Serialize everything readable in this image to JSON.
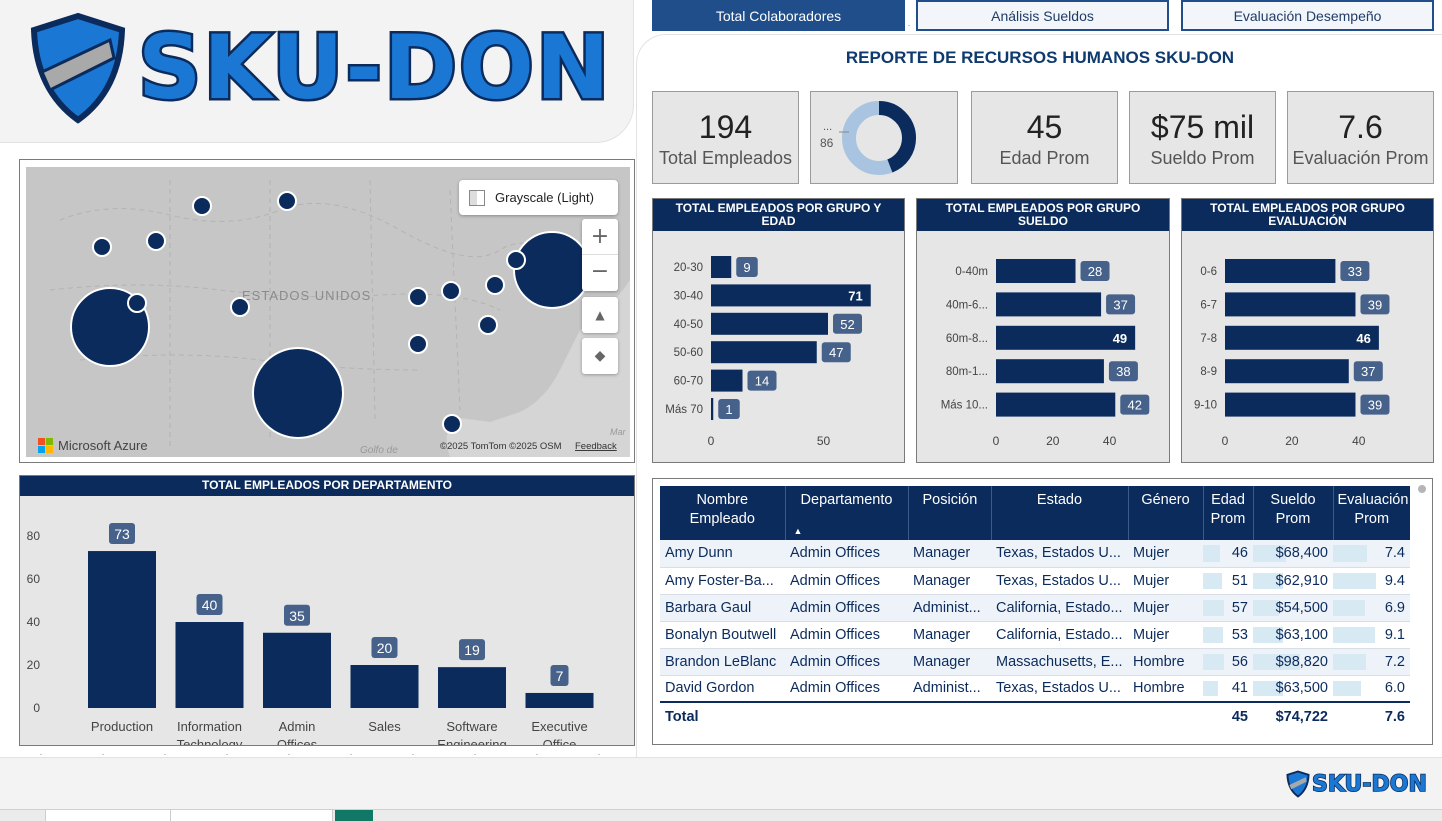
{
  "brand": {
    "logo_text": "SKU-DON",
    "small_logo_text": "SKU-DON"
  },
  "nav": {
    "tabs": [
      "Total Colaboradores",
      "Análisis Sueldos",
      "Evaluación Desempeño"
    ],
    "active": 0
  },
  "report_title": "REPORTE DE RECURSOS HUMANOS SKU-DON",
  "kpis": {
    "total_employees": {
      "value": "194",
      "label": "Total Empleados"
    },
    "donut": {
      "label_top": "...",
      "label_value": "86",
      "fraction": 0.44
    },
    "age": {
      "value": "45",
      "label": "Edad Prom"
    },
    "salary": {
      "value": "$75 mil",
      "label": "Sueldo Prom"
    },
    "evaluation": {
      "value": "7.6",
      "label": "Evaluación Prom"
    }
  },
  "map": {
    "style_button": "Grayscale (Light)",
    "country_label": "ESTADOS UNIDOS",
    "gulf_label": "Golfo de",
    "copyright": "©2025 TomTom  ©2025 OSM",
    "feedback": "Feedback",
    "azure": "Microsoft Azure",
    "mar_label": "Mar"
  },
  "chart_data": [
    {
      "type": "bar",
      "orientation": "horizontal",
      "title": "TOTAL EMPLEADOS POR GRUPO Y EDAD",
      "categories": [
        "20-30",
        "30-40",
        "40-50",
        "50-60",
        "60-70",
        "Más 70"
      ],
      "values": [
        9,
        71,
        52,
        47,
        14,
        1
      ],
      "xticks": [
        0,
        50
      ],
      "xlim": [
        0,
        80
      ]
    },
    {
      "type": "bar",
      "orientation": "horizontal",
      "title": "TOTAL EMPLEADOS POR GRUPO SUELDO",
      "categories": [
        "0-40m",
        "40m-6...",
        "60m-8...",
        "80m-1...",
        "Más 10..."
      ],
      "values": [
        28,
        37,
        49,
        38,
        42
      ],
      "xticks": [
        0,
        20,
        40
      ],
      "xlim": [
        0,
        50
      ]
    },
    {
      "type": "bar",
      "orientation": "horizontal",
      "title": "TOTAL EMPLEADOS POR GRUPO EVALUACIÓN",
      "categories": [
        "0-6",
        "6-7",
        "7-8",
        "8-9",
        "9-10"
      ],
      "values": [
        33,
        39,
        46,
        37,
        39
      ],
      "xticks": [
        0,
        20,
        40
      ],
      "xlim": [
        0,
        55
      ]
    },
    {
      "type": "bar",
      "orientation": "vertical",
      "title": "TOTAL EMPLEADOS POR DEPARTAMENTO",
      "categories": [
        "Production",
        "Information Technology",
        "Admin Offices",
        "Sales",
        "Software Engineering",
        "Executive Office"
      ],
      "values": [
        73,
        40,
        35,
        20,
        19,
        7
      ],
      "yticks": [
        0,
        20,
        40,
        60,
        80
      ],
      "ylim": [
        0,
        80
      ]
    }
  ],
  "table": {
    "headers": [
      "Nombre Empleado",
      "Departamento",
      "Posición",
      "Estado",
      "Género",
      "Edad Prom",
      "Sueldo Prom",
      "Evaluación Prom"
    ],
    "rows": [
      [
        "Amy Dunn",
        "Admin Offices",
        "Manager",
        "Texas, Estados U...",
        "Mujer",
        "46",
        "$68,400",
        "7.4"
      ],
      [
        "Amy Foster-Ba...",
        "Admin Offices",
        "Manager",
        "Texas, Estados U...",
        "Mujer",
        "51",
        "$62,910",
        "9.4"
      ],
      [
        "Barbara Gaul",
        "Admin Offices",
        "Administ...",
        "California, Estado...",
        "Mujer",
        "57",
        "$54,500",
        "6.9"
      ],
      [
        "Bonalyn Boutwell",
        "Admin Offices",
        "Manager",
        "California, Estado...",
        "Mujer",
        "53",
        "$63,100",
        "9.1"
      ],
      [
        "Brandon LeBlanc",
        "Admin Offices",
        "Manager",
        "Massachusetts, E...",
        "Hombre",
        "56",
        "$98,820",
        "7.2"
      ],
      [
        "David Gordon",
        "Admin Offices",
        "Administ...",
        "Texas, Estados U...",
        "Hombre",
        "41",
        "$63,500",
        "6.0"
      ]
    ],
    "total": {
      "label": "Total",
      "age": "45",
      "salary": "$74,722",
      "eval": "7.6"
    }
  }
}
